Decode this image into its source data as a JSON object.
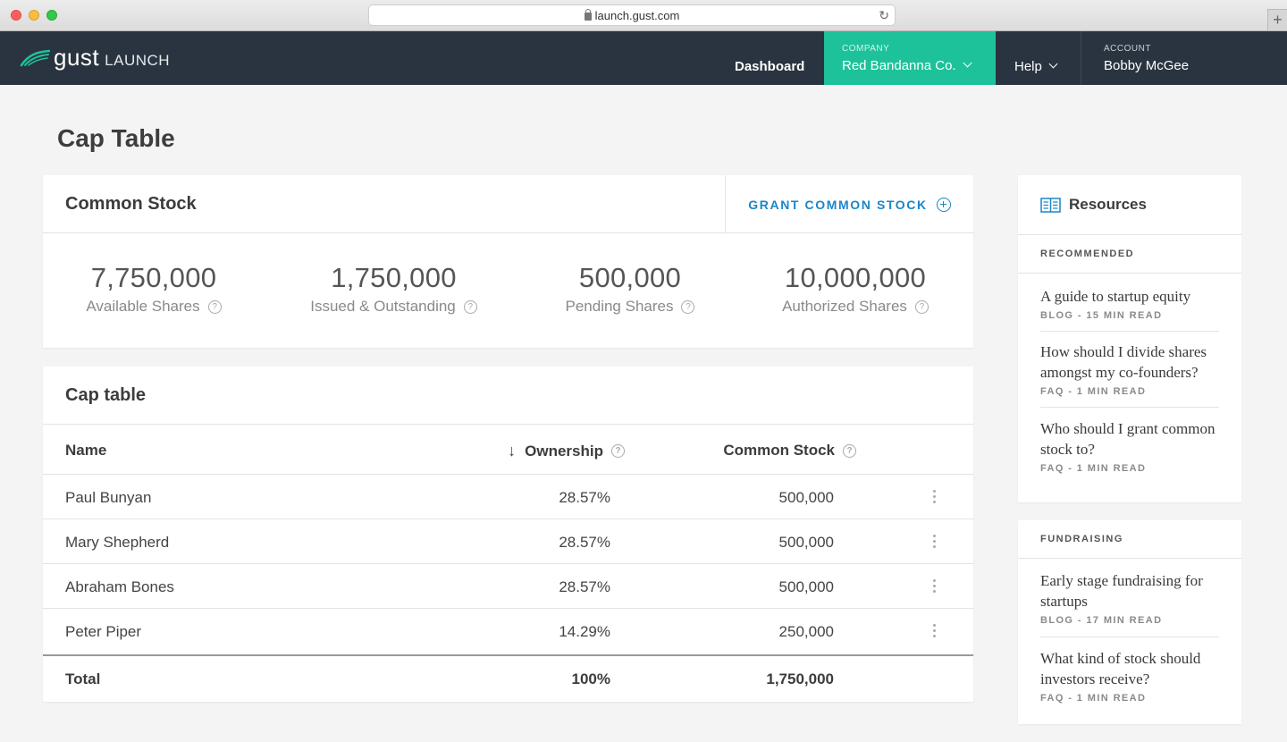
{
  "browser": {
    "url": "launch.gust.com"
  },
  "nav": {
    "logo": "gust",
    "logo_sub": "LAUNCH",
    "dashboard": "Dashboard",
    "company_label": "COMPANY",
    "company_value": "Red Bandanna Co.",
    "help": "Help",
    "account_label": "ACCOUNT",
    "account_value": "Bobby McGee",
    "colors": {
      "nav_bg": "#2a3441",
      "company_accent": "#1ec29a"
    }
  },
  "page": {
    "title": "Cap Table"
  },
  "common_stock": {
    "title": "Common Stock",
    "grant_label": "GRANT COMMON STOCK",
    "stats": [
      {
        "value": "7,750,000",
        "label": "Available Shares"
      },
      {
        "value": "1,750,000",
        "label": "Issued & Outstanding"
      },
      {
        "value": "500,000",
        "label": "Pending Shares"
      },
      {
        "value": "10,000,000",
        "label": "Authorized Shares"
      }
    ]
  },
  "cap_table": {
    "title": "Cap table",
    "columns": {
      "name": "Name",
      "ownership": "Ownership",
      "common_stock": "Common Stock"
    },
    "rows": [
      {
        "name": "Paul Bunyan",
        "ownership": "28.57%",
        "common_stock": "500,000"
      },
      {
        "name": "Mary Shepherd",
        "ownership": "28.57%",
        "common_stock": "500,000"
      },
      {
        "name": "Abraham Bones",
        "ownership": "28.57%",
        "common_stock": "500,000"
      },
      {
        "name": "Peter Piper",
        "ownership": "14.29%",
        "common_stock": "250,000"
      }
    ],
    "total": {
      "name": "Total",
      "ownership": "100%",
      "common_stock": "1,750,000"
    }
  },
  "resources": {
    "title": "Resources",
    "recommended_label": "RECOMMENDED",
    "recommended": [
      {
        "title": "A guide to startup equity",
        "meta": "BLOG - 15 MIN READ"
      },
      {
        "title": "How should I divide shares amongst my co-founders?",
        "meta": "FAQ - 1 MIN READ"
      },
      {
        "title": "Who should I grant common stock to?",
        "meta": "FAQ - 1 MIN READ"
      }
    ],
    "fundraising_label": "FUNDRAISING",
    "fundraising": [
      {
        "title": "Early stage fundraising for startups",
        "meta": "BLOG - 17 MIN READ"
      },
      {
        "title": "What kind of stock should investors receive?",
        "meta": "FAQ - 1 MIN READ"
      }
    ]
  }
}
